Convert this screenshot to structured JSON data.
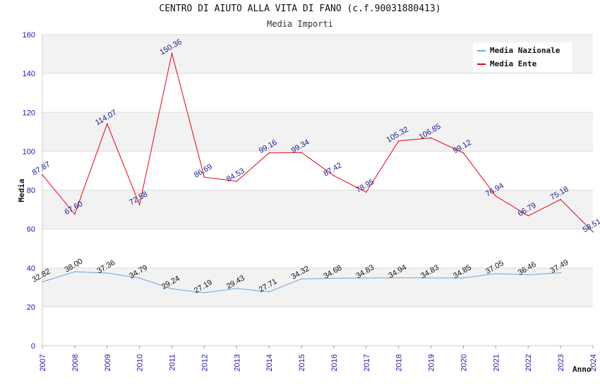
{
  "colors": {
    "ente": "#e8001c",
    "nazionale": "#6aa8e0",
    "band": "#f2f2f2",
    "grid": "#dddddd",
    "tick": "#1a1aa6"
  },
  "chart_data": {
    "type": "line",
    "title": "CENTRO DI AIUTO ALLA VITA DI FANO (c.f.90031880413)",
    "subtitle": "Media Importi",
    "xlabel": "Anno",
    "ylabel": "Media",
    "ylim": [
      0,
      160
    ],
    "yticks": [
      "0",
      "20",
      "40",
      "60",
      "80",
      "100",
      "120",
      "140",
      "160"
    ],
    "x": [
      "2007",
      "2008",
      "2009",
      "2010",
      "2011",
      "2012",
      "2013",
      "2014",
      "2015",
      "2016",
      "2017",
      "2018",
      "2019",
      "2020",
      "2021",
      "2022",
      "2023",
      "2024"
    ],
    "legend_position": "top-right",
    "series": [
      {
        "name": "Media Nazionale",
        "color": "#6aa8e0",
        "values": [
          32.82,
          38.0,
          37.36,
          34.79,
          29.24,
          27.19,
          29.43,
          27.71,
          34.32,
          34.68,
          34.83,
          34.94,
          34.83,
          34.85,
          37.05,
          36.46,
          37.49,
          null
        ],
        "labels": [
          "32.82",
          "38.00",
          "37.36",
          "34.79",
          "29.24",
          "27.19",
          "29.43",
          "27.71",
          "34.32",
          "34.68",
          "34.83",
          "34.94",
          "34.83",
          "34.85",
          "37.05",
          "36.46",
          "37.49",
          ""
        ]
      },
      {
        "name": "Media Ente",
        "color": "#e8001c",
        "values": [
          87.87,
          67.6,
          114.07,
          72.58,
          150.36,
          86.69,
          84.53,
          99.16,
          99.34,
          87.42,
          78.95,
          105.32,
          106.85,
          99.12,
          76.94,
          66.79,
          75.18,
          58.51
        ],
        "labels": [
          "87.87",
          "67.60",
          "114.07",
          "72.58",
          "150.36",
          "86.69",
          "84.53",
          "99.16",
          "99.34",
          "87.42",
          "78.95",
          "105.32",
          "106.85",
          "99.12",
          "76.94",
          "66.79",
          "75.18",
          "58.51"
        ]
      }
    ]
  }
}
